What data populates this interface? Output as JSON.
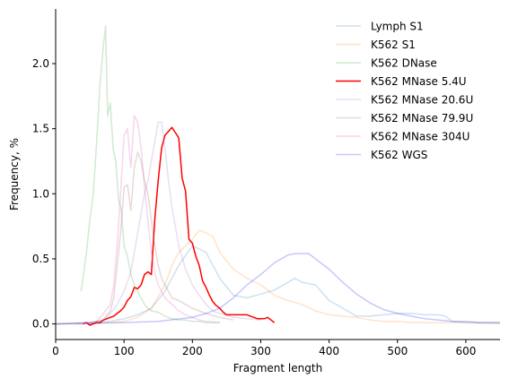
{
  "chart_data": {
    "type": "line",
    "title": "",
    "xlabel": "Fragment length",
    "ylabel": "Frequency, %",
    "xlim": [
      0,
      650
    ],
    "ylim": [
      -0.12,
      2.42
    ],
    "xticks": [
      0,
      100,
      200,
      300,
      400,
      500,
      600
    ],
    "yticks": [
      0.0,
      0.5,
      1.0,
      1.5,
      2.0
    ],
    "ytick_labels": [
      "0.0",
      "0.5",
      "1.0",
      "1.5",
      "2.0"
    ],
    "grid": false,
    "legend_position": "upper right",
    "spines": [
      "left",
      "bottom"
    ],
    "series": [
      {
        "name": "Lymph S1",
        "color": "#1f77b4",
        "alpha": 0.22,
        "linewidth": 1.5,
        "x": [
          0,
          40,
          80,
          100,
          120,
          140,
          160,
          180,
          200,
          220,
          240,
          260,
          280,
          300,
          320,
          340,
          350,
          360,
          380,
          400,
          420,
          440,
          460,
          480,
          500,
          520,
          540,
          560,
          570,
          580,
          600,
          620,
          650
        ],
        "y": [
          0.0,
          0.01,
          0.02,
          0.04,
          0.07,
          0.12,
          0.25,
          0.45,
          0.6,
          0.55,
          0.35,
          0.22,
          0.2,
          0.23,
          0.26,
          0.32,
          0.35,
          0.32,
          0.3,
          0.18,
          0.12,
          0.06,
          0.06,
          0.07,
          0.08,
          0.08,
          0.07,
          0.07,
          0.06,
          0.02,
          0.01,
          0.01,
          0.01
        ]
      },
      {
        "name": "K562 S1",
        "color": "#ff7f0e",
        "alpha": 0.22,
        "linewidth": 1.5,
        "x": [
          0,
          40,
          80,
          100,
          120,
          140,
          160,
          170,
          180,
          190,
          200,
          210,
          220,
          230,
          240,
          260,
          280,
          300,
          320,
          340,
          360,
          380,
          400,
          420,
          440,
          460,
          480,
          500,
          520,
          540,
          560,
          600,
          650
        ],
        "y": [
          0.0,
          0.0,
          0.01,
          0.02,
          0.05,
          0.12,
          0.3,
          0.45,
          0.55,
          0.6,
          0.65,
          0.72,
          0.7,
          0.67,
          0.55,
          0.42,
          0.35,
          0.3,
          0.22,
          0.18,
          0.15,
          0.1,
          0.07,
          0.06,
          0.05,
          0.03,
          0.02,
          0.02,
          0.01,
          0.01,
          0.01,
          0.01,
          0.0
        ]
      },
      {
        "name": "K562 DNase",
        "color": "#2ca02c",
        "alpha": 0.22,
        "linewidth": 1.5,
        "x": [
          37,
          40,
          45,
          50,
          55,
          60,
          65,
          70,
          73,
          76,
          80,
          84,
          88,
          92,
          96,
          100,
          105,
          110,
          115,
          120,
          125,
          130,
          135,
          140,
          150,
          160,
          170,
          180,
          190,
          200,
          210,
          220,
          230,
          240
        ],
        "y": [
          0.25,
          0.35,
          0.55,
          0.8,
          1.0,
          1.4,
          1.85,
          2.15,
          2.29,
          1.6,
          1.7,
          1.35,
          1.25,
          0.95,
          0.88,
          0.6,
          0.52,
          0.38,
          0.3,
          0.25,
          0.2,
          0.15,
          0.12,
          0.1,
          0.09,
          0.06,
          0.04,
          0.03,
          0.03,
          0.02,
          0.02,
          0.01,
          0.01,
          0.01
        ]
      },
      {
        "name": "K562 MNase 5.4U",
        "color": "#ff0000",
        "alpha": 1.0,
        "linewidth": 1.5,
        "x": [
          40,
          45,
          50,
          55,
          60,
          65,
          70,
          75,
          80,
          85,
          90,
          95,
          100,
          105,
          110,
          115,
          120,
          125,
          130,
          135,
          140,
          145,
          150,
          155,
          160,
          165,
          170,
          175,
          180,
          185,
          190,
          195,
          200,
          205,
          210,
          215,
          220,
          225,
          230,
          235,
          240,
          245,
          250,
          255,
          260,
          265,
          270,
          275,
          280,
          285,
          290,
          295,
          300,
          305,
          310,
          315,
          320
        ],
        "y": [
          0.0,
          0.01,
          -0.01,
          0.0,
          0.01,
          0.01,
          0.03,
          0.04,
          0.05,
          0.06,
          0.08,
          0.1,
          0.13,
          0.18,
          0.21,
          0.28,
          0.27,
          0.3,
          0.38,
          0.4,
          0.38,
          0.8,
          1.1,
          1.35,
          1.45,
          1.48,
          1.51,
          1.47,
          1.43,
          1.12,
          1.02,
          0.65,
          0.62,
          0.52,
          0.45,
          0.33,
          0.28,
          0.22,
          0.17,
          0.14,
          0.12,
          0.09,
          0.07,
          0.07,
          0.07,
          0.07,
          0.07,
          0.07,
          0.07,
          0.06,
          0.05,
          0.04,
          0.04,
          0.04,
          0.05,
          0.03,
          0.01
        ]
      },
      {
        "name": "K562 MNase 20.6U",
        "color": "#9467bd",
        "alpha": 0.22,
        "linewidth": 1.5,
        "x": [
          0,
          50,
          70,
          80,
          90,
          100,
          110,
          115,
          120,
          125,
          130,
          135,
          140,
          145,
          150,
          155,
          160,
          165,
          170,
          180,
          190,
          200,
          210,
          220,
          230,
          240,
          260,
          280,
          300
        ],
        "y": [
          0.0,
          0.01,
          0.03,
          0.08,
          0.15,
          0.25,
          0.4,
          0.55,
          0.7,
          0.85,
          1.0,
          1.1,
          1.25,
          1.4,
          1.55,
          1.55,
          1.35,
          1.1,
          0.9,
          0.6,
          0.42,
          0.3,
          0.22,
          0.15,
          0.1,
          0.08,
          0.05,
          0.04,
          0.03
        ]
      },
      {
        "name": "K562 MNase 79.9U",
        "color": "#8c564b",
        "alpha": 0.22,
        "linewidth": 1.5,
        "x": [
          50,
          70,
          80,
          85,
          90,
          95,
          100,
          105,
          110,
          115,
          120,
          125,
          130,
          135,
          140,
          145,
          150,
          155,
          160,
          165,
          170,
          180,
          190,
          200,
          210,
          220,
          240,
          260
        ],
        "y": [
          0.01,
          0.03,
          0.1,
          0.2,
          0.45,
          0.7,
          1.05,
          1.07,
          0.87,
          1.2,
          1.32,
          1.25,
          1.1,
          1.0,
          0.8,
          0.6,
          0.45,
          0.35,
          0.3,
          0.25,
          0.2,
          0.18,
          0.15,
          0.12,
          0.1,
          0.08,
          0.05,
          0.03
        ]
      },
      {
        "name": "K562 MNase 304U",
        "color": "#e377c2",
        "alpha": 0.3,
        "linewidth": 1.5,
        "x": [
          30,
          50,
          60,
          70,
          80,
          85,
          90,
          95,
          100,
          105,
          110,
          115,
          120,
          125,
          130,
          135,
          140,
          145,
          150,
          160,
          170,
          180,
          190,
          200,
          210,
          220,
          240
        ],
        "y": [
          0.0,
          0.01,
          0.02,
          0.08,
          0.15,
          0.3,
          0.6,
          1.0,
          1.45,
          1.5,
          1.2,
          1.6,
          1.55,
          1.35,
          1.05,
          0.8,
          0.55,
          0.4,
          0.3,
          0.2,
          0.15,
          0.1,
          0.07,
          0.05,
          0.03,
          0.02,
          0.01
        ]
      },
      {
        "name": "K562 WGS",
        "color": "#0000ff",
        "alpha": 0.22,
        "linewidth": 1.5,
        "x": [
          0,
          100,
          150,
          200,
          220,
          240,
          260,
          280,
          300,
          320,
          340,
          350,
          360,
          370,
          380,
          400,
          420,
          440,
          460,
          480,
          500,
          520,
          540,
          560,
          580,
          600,
          620,
          650
        ],
        "y": [
          0.0,
          0.01,
          0.02,
          0.05,
          0.08,
          0.12,
          0.2,
          0.3,
          0.38,
          0.47,
          0.53,
          0.54,
          0.54,
          0.54,
          0.5,
          0.42,
          0.32,
          0.23,
          0.16,
          0.11,
          0.08,
          0.06,
          0.04,
          0.03,
          0.02,
          0.02,
          0.01,
          0.01
        ]
      }
    ]
  }
}
